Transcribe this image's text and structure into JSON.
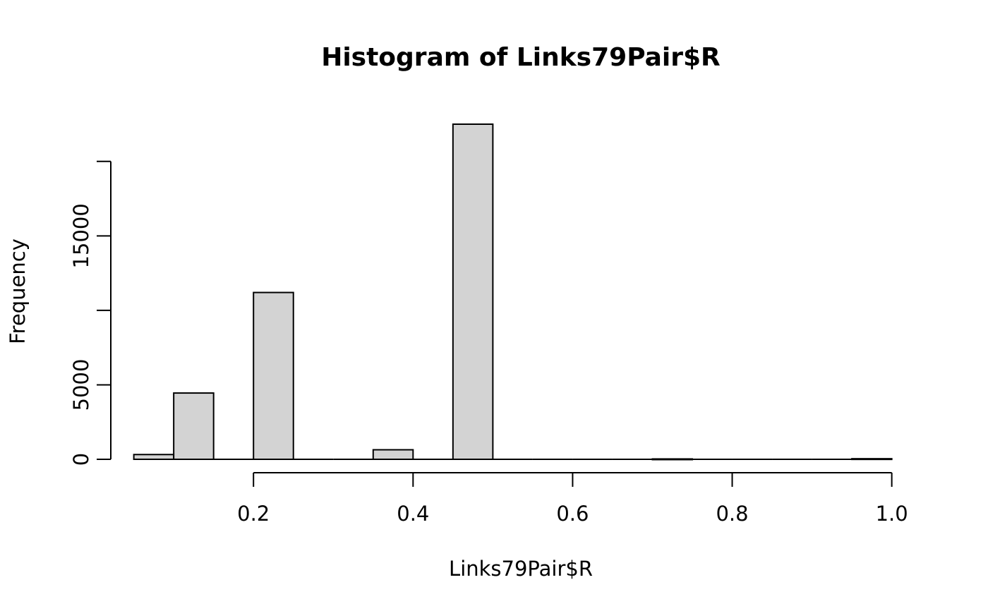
{
  "chart_data": {
    "type": "bar",
    "title": "Histogram of Links79Pair$R",
    "xlabel": "Links79Pair$R",
    "ylabel": "Frequency",
    "grid": false,
    "bins": [
      {
        "x0": 0.05,
        "x1": 0.1,
        "count": 320
      },
      {
        "x0": 0.1,
        "x1": 0.15,
        "count": 4450
      },
      {
        "x0": 0.15,
        "x1": 0.2,
        "count": 0
      },
      {
        "x0": 0.2,
        "x1": 0.25,
        "count": 11200
      },
      {
        "x0": 0.25,
        "x1": 0.3,
        "count": 0
      },
      {
        "x0": 0.3,
        "x1": 0.35,
        "count": 0
      },
      {
        "x0": 0.35,
        "x1": 0.4,
        "count": 640
      },
      {
        "x0": 0.4,
        "x1": 0.45,
        "count": 0
      },
      {
        "x0": 0.45,
        "x1": 0.5,
        "count": 22500
      },
      {
        "x0": 0.5,
        "x1": 0.55,
        "count": 0
      },
      {
        "x0": 0.55,
        "x1": 0.6,
        "count": 0
      },
      {
        "x0": 0.6,
        "x1": 0.65,
        "count": 0
      },
      {
        "x0": 0.65,
        "x1": 0.7,
        "count": 0
      },
      {
        "x0": 0.7,
        "x1": 0.75,
        "count": 25
      },
      {
        "x0": 0.75,
        "x1": 0.8,
        "count": 0
      },
      {
        "x0": 0.8,
        "x1": 0.85,
        "count": 0
      },
      {
        "x0": 0.85,
        "x1": 0.9,
        "count": 0
      },
      {
        "x0": 0.9,
        "x1": 0.95,
        "count": 0
      },
      {
        "x0": 0.95,
        "x1": 1.0,
        "count": 40
      }
    ],
    "x_ticks": [
      0.2,
      0.4,
      0.6,
      0.8,
      1.0
    ],
    "x_tick_labels": [
      "0.2",
      "0.4",
      "0.6",
      "0.8",
      "1.0"
    ],
    "y_ticks": [
      0,
      5000,
      10000,
      15000,
      20000
    ],
    "y_tick_labels": [
      "0",
      "5000",
      "",
      "15000",
      ""
    ],
    "xlim": [
      0.01,
      1.11
    ],
    "ylim": [
      0,
      22500
    ],
    "bar_fill": "#d3d3d3",
    "bar_stroke": "#000000"
  }
}
